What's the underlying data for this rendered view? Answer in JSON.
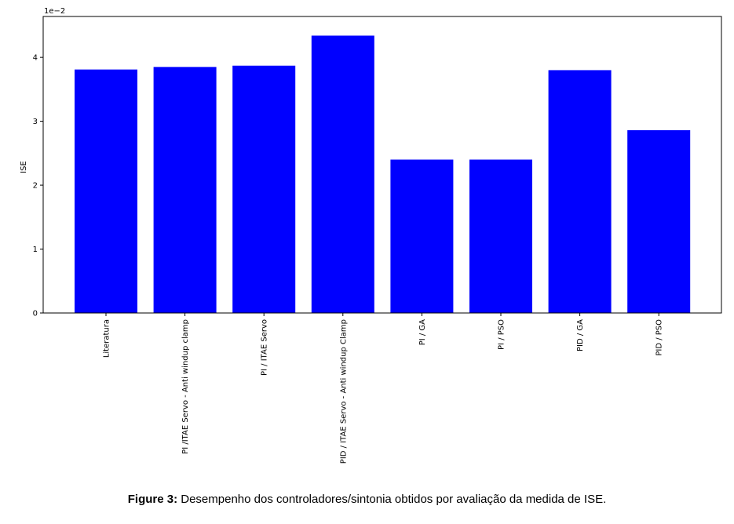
{
  "chart_data": {
    "type": "bar",
    "categories": [
      "Literatura",
      "PI /ITAE Servo - Anti windup clamp",
      "PI / ITAE Servo",
      "PID / ITAE Servo - Anti windup Clamp",
      "PI / GA",
      "PI / PSO",
      "PID / GA",
      "PID / PSO"
    ],
    "values": [
      0.0381,
      0.0385,
      0.0387,
      0.0434,
      0.024,
      0.024,
      0.038,
      0.0286
    ],
    "ylabel": "ISE",
    "ylim": [
      0,
      0.0464
    ],
    "yticks": [
      "0",
      "1",
      "2",
      "3",
      "4"
    ],
    "offset_text": "1e−2",
    "bar_color": "#0000ff",
    "grid": false
  },
  "caption": {
    "label": "Figure 3:",
    "text": " Desempenho dos controladores/sintonia obtidos por avaliação da medida de ISE."
  }
}
